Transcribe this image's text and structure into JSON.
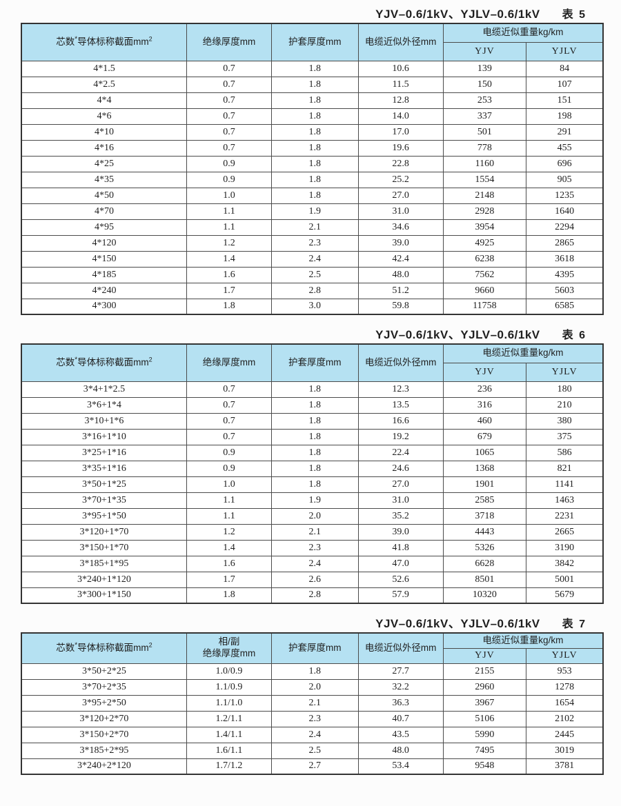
{
  "colors": {
    "header_bg": "#b5e1f2",
    "inner_border": "#4a4a4a",
    "outer_border": "#333333",
    "text": "#1f1f1f"
  },
  "tables": [
    {
      "title": "YJV–0.6/1kV、YJLV–0.6/1kV",
      "label": "表 5",
      "header": {
        "col1_pre": "芯数",
        "col1_star": "*",
        "col1_main": "导体标称截面mm",
        "col1_sup": "2",
        "col2": "绝缘厚度mm",
        "col3": "护套厚度mm",
        "col4": "电缆近似外径mm",
        "weight_group": "电缆近似重量kg/km",
        "sub_yjv": "YJV",
        "sub_yjlv": "YJLV"
      },
      "rows": [
        [
          "4*1.5",
          "0.7",
          "1.8",
          "10.6",
          "139",
          "84"
        ],
        [
          "4*2.5",
          "0.7",
          "1.8",
          "11.5",
          "150",
          "107"
        ],
        [
          "4*4",
          "0.7",
          "1.8",
          "12.8",
          "253",
          "151"
        ],
        [
          "4*6",
          "0.7",
          "1.8",
          "14.0",
          "337",
          "198"
        ],
        [
          "4*10",
          "0.7",
          "1.8",
          "17.0",
          "501",
          "291"
        ],
        [
          "4*16",
          "0.7",
          "1.8",
          "19.6",
          "778",
          "455"
        ],
        [
          "4*25",
          "0.9",
          "1.8",
          "22.8",
          "1160",
          "696"
        ],
        [
          "4*35",
          "0.9",
          "1.8",
          "25.2",
          "1554",
          "905"
        ],
        [
          "4*50",
          "1.0",
          "1.8",
          "27.0",
          "2148",
          "1235"
        ],
        [
          "4*70",
          "1.1",
          "1.9",
          "31.0",
          "2928",
          "1640"
        ],
        [
          "4*95",
          "1.1",
          "2.1",
          "34.6",
          "3954",
          "2294"
        ],
        [
          "4*120",
          "1.2",
          "2.3",
          "39.0",
          "4925",
          "2865"
        ],
        [
          "4*150",
          "1.4",
          "2.4",
          "42.4",
          "6238",
          "3618"
        ],
        [
          "4*185",
          "1.6",
          "2.5",
          "48.0",
          "7562",
          "4395"
        ],
        [
          "4*240",
          "1.7",
          "2.8",
          "51.2",
          "9660",
          "5603"
        ],
        [
          "4*300",
          "1.8",
          "3.0",
          "59.8",
          "11758",
          "6585"
        ]
      ]
    },
    {
      "title": "YJV–0.6/1kV、YJLV–0.6/1kV",
      "label": "表 6",
      "header": {
        "col1_pre": "芯数",
        "col1_star": "*",
        "col1_main": "导体标称截面mm",
        "col1_sup": "2",
        "col2": "绝缘厚度mm",
        "col3": "护套厚度mm",
        "col4": "电缆近似外径mm",
        "weight_group": "电缆近似重量kg/km",
        "sub_yjv": "YJV",
        "sub_yjlv": "YJLV"
      },
      "rows": [
        [
          "3*4+1*2.5",
          "0.7",
          "1.8",
          "12.3",
          "236",
          "180"
        ],
        [
          "3*6+1*4",
          "0.7",
          "1.8",
          "13.5",
          "316",
          "210"
        ],
        [
          "3*10+1*6",
          "0.7",
          "1.8",
          "16.6",
          "460",
          "380"
        ],
        [
          "3*16+1*10",
          "0.7",
          "1.8",
          "19.2",
          "679",
          "375"
        ],
        [
          "3*25+1*16",
          "0.9",
          "1.8",
          "22.4",
          "1065",
          "586"
        ],
        [
          "3*35+1*16",
          "0.9",
          "1.8",
          "24.6",
          "1368",
          "821"
        ],
        [
          "3*50+1*25",
          "1.0",
          "1.8",
          "27.0",
          "1901",
          "1141"
        ],
        [
          "3*70+1*35",
          "1.1",
          "1.9",
          "31.0",
          "2585",
          "1463"
        ],
        [
          "3*95+1*50",
          "1.1",
          "2.0",
          "35.2",
          "3718",
          "2231"
        ],
        [
          "3*120+1*70",
          "1.2",
          "2.1",
          "39.0",
          "4443",
          "2665"
        ],
        [
          "3*150+1*70",
          "1.4",
          "2.3",
          "41.8",
          "5326",
          "3190"
        ],
        [
          "3*185+1*95",
          "1.6",
          "2.4",
          "47.0",
          "6628",
          "3842"
        ],
        [
          "3*240+1*120",
          "1.7",
          "2.6",
          "52.6",
          "8501",
          "5001"
        ],
        [
          "3*300+1*150",
          "1.8",
          "2.8",
          "57.9",
          "10320",
          "5679"
        ]
      ]
    },
    {
      "title": "YJV–0.6/1kV、YJLV–0.6/1kV",
      "label": "表 7",
      "header": {
        "col1_pre": "芯数",
        "col1_star": "*",
        "col1_main": "导体标称截面mm",
        "col1_sup": "2",
        "col2": "相/副\n绝缘厚度mm",
        "col3": "护套厚度mm",
        "col4": "电缆近似外径mm",
        "weight_group": "电缆近似重量kg/km",
        "sub_yjv": "YJV",
        "sub_yjlv": "YJLV"
      },
      "rows": [
        [
          "3*50+2*25",
          "1.0/0.9",
          "1.8",
          "27.7",
          "2155",
          "953"
        ],
        [
          "3*70+2*35",
          "1.1/0.9",
          "2.0",
          "32.2",
          "2960",
          "1278"
        ],
        [
          "3*95+2*50",
          "1.1/1.0",
          "2.1",
          "36.3",
          "3967",
          "1654"
        ],
        [
          "3*120+2*70",
          "1.2/1.1",
          "2.3",
          "40.7",
          "5106",
          "2102"
        ],
        [
          "3*150+2*70",
          "1.4/1.1",
          "2.4",
          "43.5",
          "5990",
          "2445"
        ],
        [
          "3*185+2*95",
          "1.6/1.1",
          "2.5",
          "48.0",
          "7495",
          "3019"
        ],
        [
          "3*240+2*120",
          "1.7/1.2",
          "2.7",
          "53.4",
          "9548",
          "3781"
        ]
      ]
    }
  ]
}
